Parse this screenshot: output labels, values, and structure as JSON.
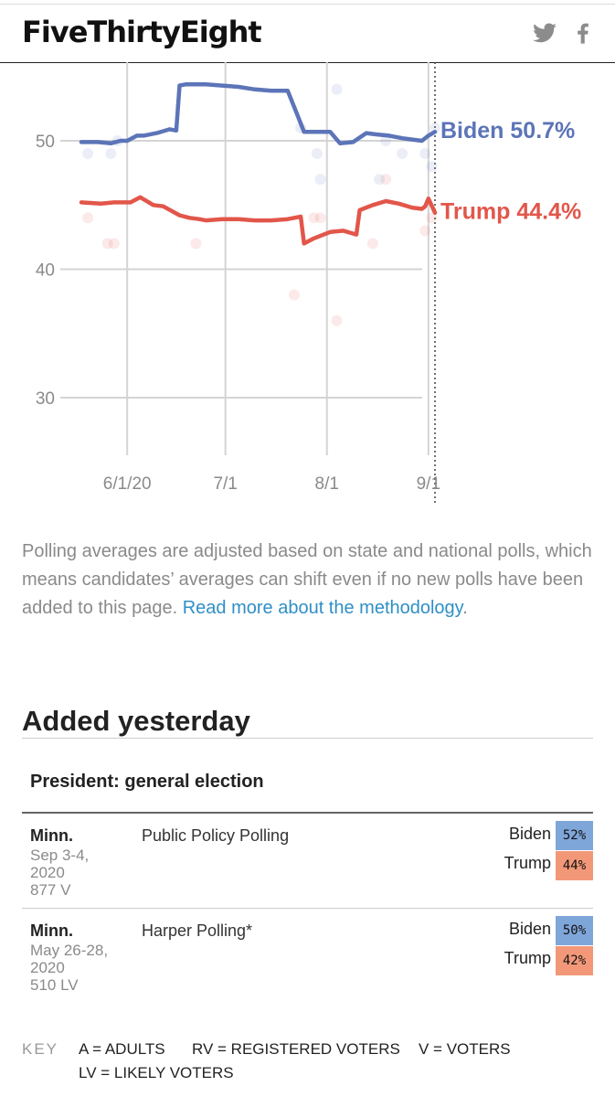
{
  "header": {
    "logo": "FiveThirtyEight",
    "share": [
      "twitter-icon",
      "facebook-icon"
    ]
  },
  "chart_data": {
    "type": "line",
    "y_ticks": [
      "50",
      "40",
      "30"
    ],
    "x_ticks": [
      "6/1/20",
      "7/1",
      "8/1",
      "9/1"
    ],
    "ylim": [
      25,
      56
    ],
    "grid": true,
    "series": [
      {
        "name": "Biden",
        "end_label": "Biden 50.7%",
        "color": "#5c74b8",
        "x": [
          "2020-05-18",
          "2020-05-23",
          "2020-05-27",
          "2020-05-30",
          "2020-06-01",
          "2020-06-04",
          "2020-06-06",
          "2020-06-10",
          "2020-06-14",
          "2020-06-16",
          "2020-06-17",
          "2020-06-19",
          "2020-06-25",
          "2020-06-30",
          "2020-07-05",
          "2020-07-10",
          "2020-07-15",
          "2020-07-20",
          "2020-07-23",
          "2020-07-25",
          "2020-07-28",
          "2020-08-02",
          "2020-08-05",
          "2020-08-09",
          "2020-08-13",
          "2020-08-16",
          "2020-08-20",
          "2020-08-24",
          "2020-08-27",
          "2020-08-30",
          "2020-09-01",
          "2020-09-03"
        ],
        "values": [
          49.9,
          49.9,
          49.8,
          50.0,
          50.0,
          50.4,
          50.4,
          50.6,
          50.9,
          50.8,
          54.3,
          54.4,
          54.4,
          54.3,
          54.2,
          54.0,
          53.9,
          53.9,
          52.0,
          50.7,
          50.7,
          50.7,
          49.8,
          49.9,
          50.6,
          50.5,
          50.4,
          50.2,
          50.1,
          50.0,
          50.4,
          50.7
        ]
      },
      {
        "name": "Trump",
        "end_label": "Trump 44.4%",
        "color": "#e2564a",
        "x": [
          "2020-05-18",
          "2020-05-24",
          "2020-05-28",
          "2020-06-02",
          "2020-06-05",
          "2020-06-09",
          "2020-06-12",
          "2020-06-17",
          "2020-06-20",
          "2020-06-23",
          "2020-06-25",
          "2020-06-30",
          "2020-07-05",
          "2020-07-10",
          "2020-07-15",
          "2020-07-20",
          "2020-07-24",
          "2020-07-25",
          "2020-07-28",
          "2020-08-02",
          "2020-08-06",
          "2020-08-10",
          "2020-08-11",
          "2020-08-15",
          "2020-08-19",
          "2020-08-23",
          "2020-08-27",
          "2020-08-30",
          "2020-08-31",
          "2020-09-01",
          "2020-09-03"
        ],
        "values": [
          45.2,
          45.1,
          45.2,
          45.2,
          45.6,
          45.0,
          44.9,
          44.2,
          44.0,
          43.9,
          43.8,
          43.9,
          43.9,
          43.8,
          43.8,
          43.9,
          44.1,
          42.0,
          42.4,
          42.9,
          43.0,
          42.7,
          44.6,
          45.0,
          45.3,
          45.1,
          44.8,
          44.7,
          44.9,
          45.5,
          44.4
        ]
      }
    ],
    "scatter": [
      {
        "x": "2020-05-20",
        "y": 49,
        "series": "Biden"
      },
      {
        "x": "2020-05-27",
        "y": 49,
        "series": "Biden"
      },
      {
        "x": "2020-05-29",
        "y": 50,
        "series": "Biden"
      },
      {
        "x": "2020-07-24",
        "y": 51,
        "series": "Biden"
      },
      {
        "x": "2020-07-29",
        "y": 49,
        "series": "Biden"
      },
      {
        "x": "2020-07-30",
        "y": 47,
        "series": "Biden"
      },
      {
        "x": "2020-08-04",
        "y": 54,
        "series": "Biden"
      },
      {
        "x": "2020-08-17",
        "y": 47,
        "series": "Biden"
      },
      {
        "x": "2020-08-19",
        "y": 50,
        "series": "Biden"
      },
      {
        "x": "2020-08-24",
        "y": 49,
        "series": "Biden"
      },
      {
        "x": "2020-08-31",
        "y": 49,
        "series": "Biden"
      },
      {
        "x": "2020-09-02",
        "y": 48,
        "series": "Biden"
      },
      {
        "x": "2020-09-03",
        "y": 51,
        "series": "Biden"
      },
      {
        "x": "2020-05-20",
        "y": 44,
        "series": "Trump"
      },
      {
        "x": "2020-05-26",
        "y": 42,
        "series": "Trump"
      },
      {
        "x": "2020-05-28",
        "y": 42,
        "series": "Trump"
      },
      {
        "x": "2020-06-22",
        "y": 42,
        "series": "Trump"
      },
      {
        "x": "2020-07-22",
        "y": 38,
        "series": "Trump"
      },
      {
        "x": "2020-07-28",
        "y": 44,
        "series": "Trump"
      },
      {
        "x": "2020-07-30",
        "y": 44,
        "series": "Trump"
      },
      {
        "x": "2020-08-04",
        "y": 36,
        "series": "Trump"
      },
      {
        "x": "2020-08-15",
        "y": 42,
        "series": "Trump"
      },
      {
        "x": "2020-08-19",
        "y": 47,
        "series": "Trump"
      },
      {
        "x": "2020-08-31",
        "y": 43,
        "series": "Trump"
      },
      {
        "x": "2020-09-02",
        "y": 44,
        "series": "Trump"
      }
    ]
  },
  "note": {
    "text": "Polling averages are adjusted based on state and national polls, which means candidates’ averages can shift even if no new polls have been added to this page. ",
    "link": "Read more about the methodology",
    "tail": "."
  },
  "section": {
    "title": "Added yesterday",
    "race": "President: general election"
  },
  "polls": [
    {
      "state": "Minn.",
      "dates": "Sep 3-4,",
      "year": "2020",
      "sample": "877 V",
      "pollster": "Public Policy Polling",
      "results": [
        {
          "name": "Biden",
          "pct": "52%"
        },
        {
          "name": "Trump",
          "pct": "44%"
        }
      ]
    },
    {
      "state": "Minn.",
      "dates": "May 26-28,",
      "year": "2020",
      "sample": "510 LV",
      "pollster": "Harper Polling*",
      "results": [
        {
          "name": "Biden",
          "pct": "50%"
        },
        {
          "name": "Trump",
          "pct": "42%"
        }
      ]
    }
  ],
  "key": {
    "label": "KEY",
    "items": [
      "A = ADULTS",
      "RV = REGISTERED VOTERS",
      "V = VOTERS",
      "LV = LIKELY VOTERS"
    ]
  },
  "colors": {
    "biden": "#5c74b8",
    "trump": "#e2564a",
    "link": "#2f8fc6",
    "biden_cell": "#7fa6d9",
    "trump_cell": "#f29878"
  }
}
